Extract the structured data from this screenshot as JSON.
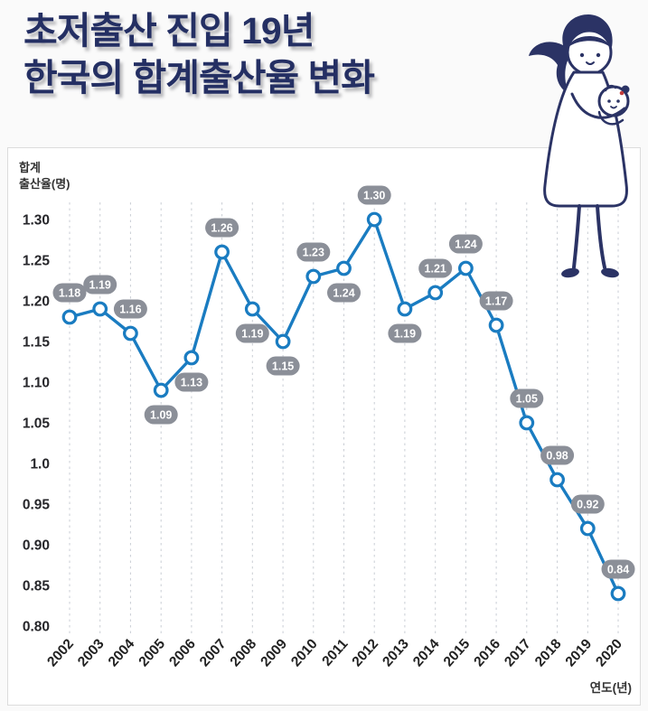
{
  "title": {
    "line1": "초저출산 진입 19년",
    "line2": "한국의 합계출산율 변화"
  },
  "decor": {
    "illustration": "mother-holding-baby-illustration"
  },
  "chart_data": {
    "type": "line",
    "title": "한국의 합계출산율 변화",
    "x": [
      "2002",
      "2003",
      "2004",
      "2005",
      "2006",
      "2007",
      "2008",
      "2009",
      "2010",
      "2011",
      "2012",
      "2013",
      "2014",
      "2015",
      "2016",
      "2017",
      "2018",
      "2019",
      "2020"
    ],
    "values": [
      1.18,
      1.19,
      1.16,
      1.09,
      1.13,
      1.26,
      1.19,
      1.15,
      1.23,
      1.24,
      1.3,
      1.19,
      1.21,
      1.24,
      1.17,
      1.05,
      0.98,
      0.92,
      0.84
    ],
    "point_labels": [
      "1.18",
      "1.19",
      "1.16",
      "1.09",
      "1.13",
      "1.26",
      "1.19",
      "1.15",
      "1.23",
      "1.24",
      "1.30",
      "1.19",
      "1.21",
      "1.24",
      "1.17",
      "1.05",
      "0.98",
      "0.92",
      "0.84"
    ],
    "label_side": [
      "above",
      "above",
      "above",
      "below",
      "below",
      "above",
      "below",
      "below",
      "above",
      "below",
      "above",
      "below",
      "above",
      "above",
      "above",
      "above",
      "above",
      "above",
      "above"
    ],
    "ylabel_lines": [
      "합계",
      "출산율(명)"
    ],
    "xlabel": "연도(년)",
    "y_ticks": [
      "1.30",
      "1.25",
      "1.20",
      "1.15",
      "1.10",
      "1.05",
      "1.0",
      "0.95",
      "0.90",
      "0.85",
      "0.80"
    ],
    "y_tick_values": [
      1.3,
      1.25,
      1.2,
      1.15,
      1.1,
      1.05,
      1.0,
      0.95,
      0.9,
      0.85,
      0.8
    ],
    "ylim": [
      0.8,
      1.3
    ],
    "grid": "vertical-dashed",
    "legend": "none",
    "colors": {
      "line": "#1a7cc1",
      "marker_fill": "#ffffff",
      "badge": "#8b8f98",
      "badge_text": "#ffffff",
      "title": "#242f63",
      "grid": "#c9cdd4",
      "tick_text": "#26262a"
    }
  }
}
